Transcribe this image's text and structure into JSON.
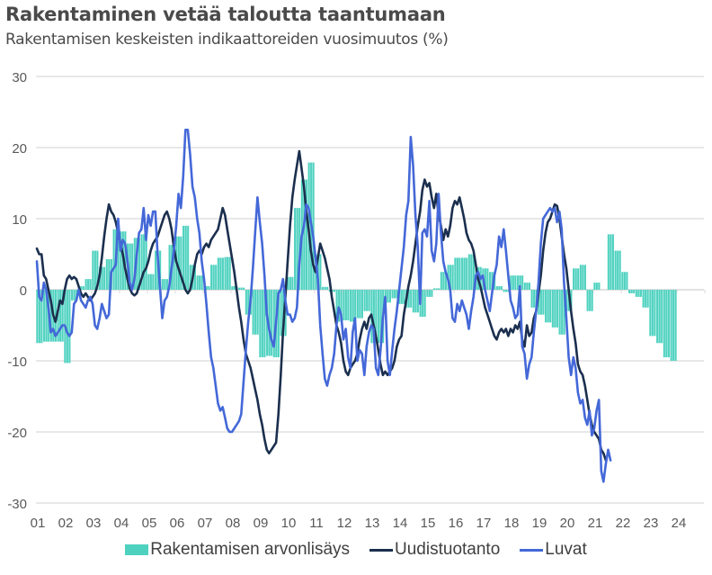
{
  "chart_data": {
    "type": "bar+line",
    "title": "Rakentaminen vetää taloutta taantumaan",
    "subtitle": "Rakentamisen keskeisten indikaattoreiden vuosimuutos (%)",
    "xlabel": "",
    "ylabel": "",
    "ylim": [
      -30,
      30
    ],
    "yticks": [
      "30",
      "20",
      "10",
      "0",
      "-10",
      "-20",
      "-30"
    ],
    "ytick_values": [
      30,
      20,
      10,
      0,
      -10,
      -20,
      -30
    ],
    "xticks": [
      "01",
      "02",
      "03",
      "04",
      "05",
      "06",
      "07",
      "08",
      "09",
      "10",
      "11",
      "12",
      "13",
      "14",
      "15",
      "16",
      "17",
      "18",
      "19",
      "20",
      "21",
      "22",
      "23",
      "24"
    ],
    "x_start_year": 2001,
    "grid": true,
    "legend_position": "bottom",
    "colors": {
      "bars": "#4fd1c0",
      "uudistuotanto": "#1b2f4e",
      "luvat": "#4468d8",
      "grid": "#d9d9d9",
      "text": "#595959"
    },
    "bar_series": {
      "name": "Rakentamisen arvonlisäys",
      "frequency": "quarterly",
      "values": [
        -7.5,
        -7.3,
        -7.3,
        -7.3,
        -10.3,
        -1.5,
        0.5,
        1.5,
        5.5,
        3.2,
        4.3,
        8.5,
        8.2,
        6.5,
        7.3,
        7.8,
        2.2,
        5.5,
        1.5,
        6.3,
        7.5,
        9.0,
        3.5,
        2.0,
        0.5,
        3.5,
        4.5,
        4.6,
        0.5,
        0.3,
        -3.5,
        -6.3,
        -9.5,
        -9.3,
        -9.5,
        -6.5,
        1.8,
        11.5,
        15.5,
        17.9,
        5.0,
        0.4,
        -0.3,
        -4.5,
        -4.3,
        -4.5,
        -4.0,
        -3.0,
        -7.5,
        -7.5,
        -1.8,
        -1.2,
        -2.0,
        -2.5,
        -3.2,
        -3.8,
        -1.0,
        0.2,
        2.5,
        3.5,
        4.5,
        4.5,
        5.0,
        3.2,
        3.0,
        2.5,
        0.5,
        -0.3,
        2.0,
        2.0,
        1.0,
        -2.5,
        -3.5,
        -4.6,
        -5.3,
        -6.3,
        -3.0,
        3.0,
        3.5,
        -3.0,
        1.0,
        0.0,
        7.8,
        5.5,
        2.5,
        -0.5,
        -1.0,
        -2.5,
        -6.5,
        -7.5,
        -9.5,
        -10.0
      ]
    },
    "line_series": [
      {
        "name": "Uudistuotanto",
        "frequency": "monthly",
        "values": [
          5.8,
          5.0,
          5.0,
          2.0,
          1.5,
          0.0,
          -1.5,
          -3.5,
          -4.5,
          -3.0,
          -1.5,
          -2.0,
          0.0,
          1.5,
          2.0,
          1.5,
          1.8,
          1.5,
          0.5,
          -0.5,
          -1.0,
          -0.5,
          -1.0,
          -1.5,
          -1.0,
          -0.5,
          0.5,
          2.0,
          4.5,
          7.5,
          10.0,
          12.0,
          11.0,
          10.5,
          9.5,
          8.0,
          6.5,
          5.0,
          3.0,
          1.5,
          0.2,
          -0.5,
          -0.8,
          -0.5,
          0.5,
          1.5,
          2.5,
          3.0,
          4.0,
          5.5,
          6.5,
          7.0,
          7.5,
          8.5,
          9.5,
          10.5,
          11.0,
          10.0,
          8.5,
          6.0,
          4.0,
          3.0,
          2.0,
          1.0,
          0.0,
          -0.5,
          0.0,
          1.5,
          3.5,
          5.0,
          5.5,
          5.0,
          6.0,
          6.5,
          6.0,
          7.0,
          7.5,
          8.0,
          8.5,
          10.0,
          11.5,
          10.5,
          8.5,
          6.5,
          4.5,
          2.5,
          0.0,
          -2.5,
          -4.5,
          -7.0,
          -9.0,
          -10.0,
          -11.0,
          -12.5,
          -14.0,
          -15.5,
          -17.5,
          -19.0,
          -21.0,
          -22.5,
          -23.0,
          -22.5,
          -22.0,
          -21.5,
          -17.5,
          -12.0,
          -6.0,
          -1.0,
          4.0,
          9.0,
          13.0,
          15.5,
          17.5,
          19.5,
          17.0,
          14.5,
          11.0,
          8.5,
          5.5,
          3.5,
          2.5,
          4.5,
          6.5,
          5.5,
          4.5,
          3.0,
          1.5,
          -1.0,
          -3.0,
          -5.0,
          -6.0,
          -7.5,
          -10.0,
          -11.5,
          -12.0,
          -11.0,
          -10.5,
          -10.0,
          -9.0,
          -7.0,
          -5.5,
          -4.5,
          -5.5,
          -4.0,
          -3.5,
          -5.0,
          -6.5,
          -8.5,
          -10.5,
          -12.0,
          -11.5,
          -12.0,
          -11.5,
          -11.0,
          -10.0,
          -8.0,
          -7.0,
          -6.5,
          -3.5,
          -1.5,
          0.5,
          2.0,
          4.0,
          6.5,
          9.0,
          11.0,
          14.0,
          15.5,
          14.5,
          15.0,
          13.0,
          11.5,
          13.5,
          10.5,
          9.0,
          7.0,
          8.5,
          7.5,
          9.0,
          11.5,
          12.5,
          12.0,
          13.0,
          11.5,
          10.0,
          8.0,
          7.0,
          6.5,
          5.5,
          3.5,
          1.5,
          0.5,
          -1.0,
          -2.5,
          -3.5,
          -4.5,
          -5.5,
          -6.5,
          -7.0,
          -6.0,
          -5.5,
          -6.0,
          -5.5,
          -6.5,
          -5.5,
          -6.0,
          -5.0,
          -5.5,
          -4.5,
          -7.0,
          -8.0,
          -5.0,
          -6.5,
          -6.0,
          -4.0,
          -3.0,
          -0.5,
          2.0,
          5.5,
          8.0,
          9.5,
          10.0,
          11.0,
          12.0,
          11.8,
          10.0,
          7.5,
          5.0,
          3.0,
          0.0,
          -3.0,
          -5.5,
          -7.5,
          -10.5,
          -11.5,
          -12.0,
          -13.5,
          -15.5,
          -17.5,
          -19.0,
          -20.0,
          -20.5,
          -21.0,
          -22.5,
          -23.0,
          -24.0
        ]
      },
      {
        "name": "Luvat",
        "frequency": "monthly",
        "values": [
          4.0,
          -1.0,
          -1.5,
          1.0,
          0.0,
          -2.5,
          -6.0,
          -5.5,
          -6.5,
          -6.0,
          -5.5,
          -5.0,
          -5.0,
          -6.0,
          -6.5,
          -6.0,
          -2.0,
          -1.5,
          0.0,
          -1.5,
          -2.0,
          -2.5,
          -1.5,
          -1.0,
          -2.0,
          -5.0,
          -5.5,
          -4.0,
          -2.0,
          -3.0,
          -4.0,
          -3.5,
          2.5,
          3.0,
          3.5,
          10.0,
          5.5,
          7.0,
          6.5,
          4.0,
          1.0,
          0.0,
          1.5,
          5.0,
          8.0,
          8.5,
          11.5,
          7.0,
          10.5,
          9.0,
          11.0,
          11.0,
          5.0,
          0.5,
          -4.0,
          -1.5,
          -1.0,
          0.5,
          3.0,
          5.5,
          9.0,
          13.5,
          11.5,
          16.0,
          22.5,
          22.5,
          19.0,
          14.5,
          13.0,
          10.0,
          8.0,
          4.0,
          1.5,
          -2.0,
          -6.0,
          -9.5,
          -11.0,
          -13.5,
          -16.0,
          -17.0,
          -16.5,
          -18.0,
          -19.5,
          -20.0,
          -20.0,
          -19.5,
          -19.0,
          -18.5,
          -17.5,
          -13.0,
          -8.5,
          -4.5,
          -1.5,
          3.0,
          8.0,
          13.0,
          9.5,
          6.5,
          2.0,
          -3.5,
          -5.5,
          -7.0,
          -8.0,
          -4.5,
          -0.5,
          0.0,
          1.5,
          -1.5,
          -3.5,
          -3.5,
          -4.5,
          -4.0,
          -2.5,
          3.5,
          7.5,
          9.0,
          12.0,
          11.5,
          9.5,
          7.5,
          4.5,
          1.5,
          -5.0,
          -9.0,
          -12.5,
          -13.5,
          -12.0,
          -11.0,
          -9.0,
          -5.0,
          -2.5,
          -3.5,
          -7.0,
          -5.5,
          -9.5,
          -11.0,
          -6.0,
          -4.0,
          -10.0,
          -8.5,
          -9.0,
          -12.0,
          -8.0,
          -6.0,
          -5.0,
          -5.5,
          -11.0,
          -12.0,
          -8.5,
          -4.0,
          -1.0,
          -10.0,
          -12.0,
          -8.5,
          -5.5,
          -3.0,
          0.0,
          3.0,
          6.0,
          10.5,
          12.5,
          21.5,
          17.5,
          10.5,
          6.0,
          -2.0,
          8.0,
          8.5,
          7.5,
          12.5,
          5.5,
          4.0,
          6.5,
          13.5,
          8.0,
          4.0,
          2.5,
          1.5,
          0.0,
          -4.0,
          -4.5,
          -2.0,
          -3.0,
          -1.5,
          -2.5,
          -3.5,
          -5.5,
          -3.0,
          -1.0,
          2.0,
          2.5,
          1.5,
          2.0,
          0.0,
          -1.5,
          -3.0,
          -0.5,
          2.0,
          3.5,
          7.5,
          6.0,
          8.5,
          5.5,
          2.0,
          -1.5,
          -2.5,
          -4.0,
          -3.5,
          0.5,
          -8.0,
          -9.0,
          -12.5,
          -10.5,
          -9.5,
          -6.0,
          -3.0,
          1.0,
          6.5,
          10.0,
          10.5,
          11.0,
          11.5,
          11.0,
          11.5,
          9.5,
          11.0,
          8.5,
          1.0,
          -4.0,
          -9.5,
          -12.0,
          -9.5,
          -11.0,
          -14.5,
          -16.0,
          -15.5,
          -18.0,
          -19.0,
          -17.0,
          -20.5,
          -19.5,
          -17.0,
          -15.5,
          -25.5,
          -27.0,
          -24.5,
          -22.5,
          -24.0
        ]
      }
    ],
    "legend": [
      {
        "label": "Rakentamisen arvonlisäys",
        "type": "bar"
      },
      {
        "label": "Uudistuotanto",
        "type": "line"
      },
      {
        "label": "Luvat",
        "type": "line"
      }
    ]
  }
}
